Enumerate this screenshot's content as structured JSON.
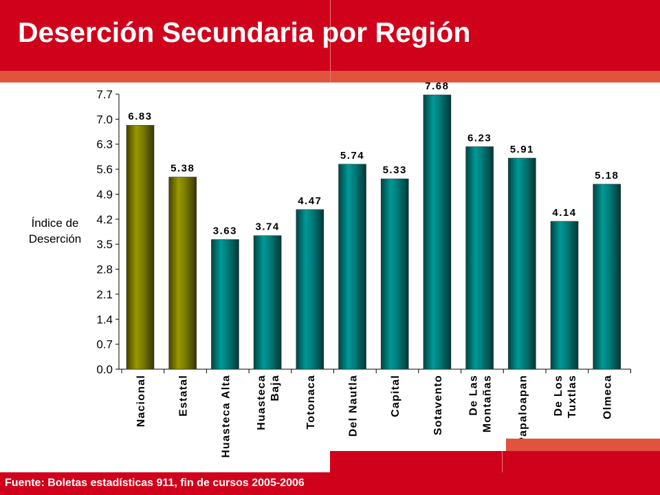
{
  "slide": {
    "title": "Deserción Secundaria por Región",
    "source": "Fuente: Boletas estadísticas 911, fin de cursos 2005-2006"
  },
  "colors": {
    "header": "#d0021b",
    "stripe": "#e0533c",
    "national_bar": "#7a7a00",
    "region_bar": "#007a78"
  },
  "chart_data": {
    "type": "bar",
    "ylabel": "Índice de Deserción",
    "ylabel_lines": [
      "Índice de",
      "Deserción"
    ],
    "ylim": [
      0,
      7.7
    ],
    "yticks": [
      "0.0",
      "0.7",
      "1.4",
      "2.1",
      "2.8",
      "3.5",
      "4.2",
      "4.9",
      "5.6",
      "6.3",
      "7.0",
      "7.7"
    ],
    "categories": [
      "Nacional",
      "Estatal",
      "Huasteca Alta",
      "Huasteca Baja",
      "Totonaca",
      "Del Nautla",
      "Capital",
      "Sotavento",
      "De Las Montañas",
      "Papaloapan",
      "De Los Tuxtlas",
      "Olmeca"
    ],
    "category_lines": [
      [
        "Nacional"
      ],
      [
        "Estatal"
      ],
      [
        "Huasteca Alta"
      ],
      [
        "Huasteca",
        "Baja"
      ],
      [
        "Totonaca"
      ],
      [
        "Del Nautla"
      ],
      [
        "Capital"
      ],
      [
        "Sotavento"
      ],
      [
        "De Las",
        "Montañas"
      ],
      [
        "Papaloapan"
      ],
      [
        "De Los",
        "Tuxtlas"
      ],
      [
        "Olmeca"
      ]
    ],
    "values": [
      6.83,
      5.38,
      3.63,
      3.74,
      4.47,
      5.74,
      5.33,
      7.68,
      6.23,
      5.91,
      4.14,
      5.18
    ],
    "value_labels": [
      "6.83",
      "5.38",
      "3.63",
      "3.74",
      "4.47",
      "5.74",
      "5.33",
      "7.68",
      "6.23",
      "5.91",
      "4.14",
      "5.18"
    ],
    "bar_color_groups": [
      "national",
      "national",
      "region",
      "region",
      "region",
      "region",
      "region",
      "region",
      "region",
      "region",
      "region",
      "region"
    ],
    "grid": false,
    "legend": "none"
  }
}
